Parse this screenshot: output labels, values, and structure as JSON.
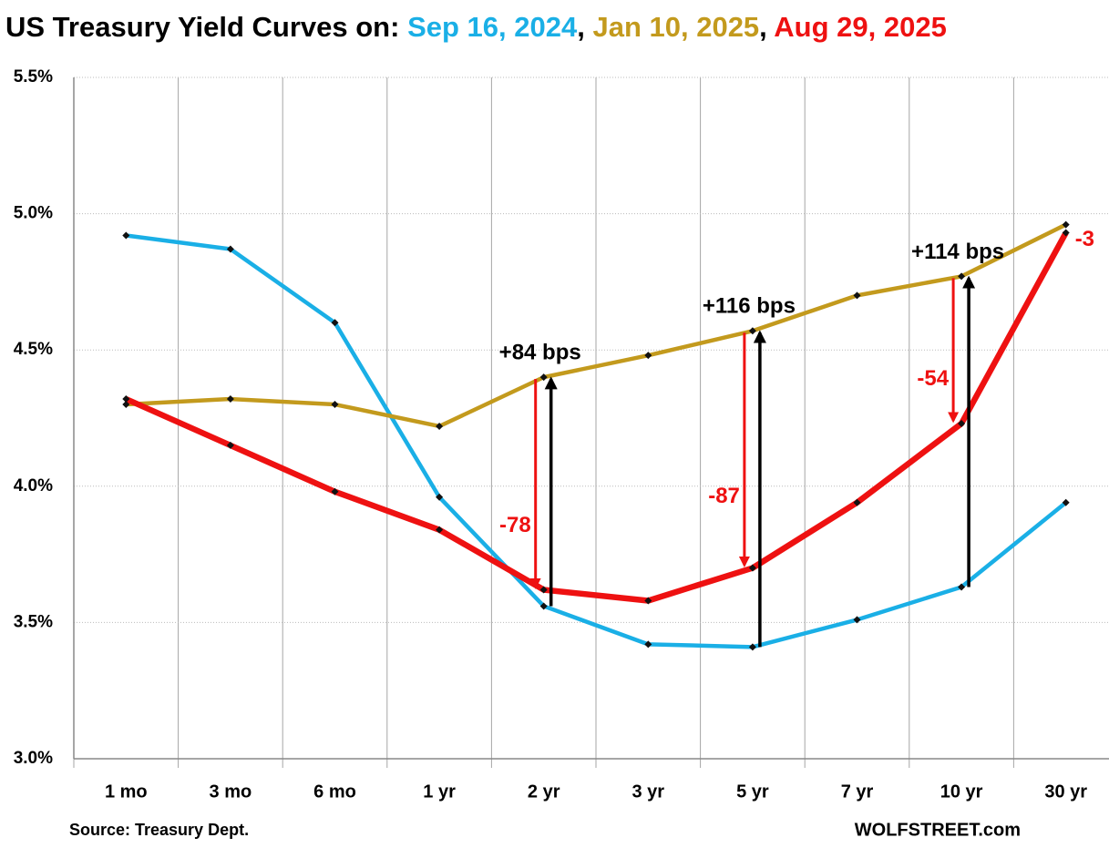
{
  "chart_data": {
    "type": "line",
    "title": "US Treasury Yield Curves on:",
    "title_separator": ",",
    "categories": [
      "1 mo",
      "3 mo",
      "6 mo",
      "1 yr",
      "2 yr",
      "3 yr",
      "5 yr",
      "7 yr",
      "10 yr",
      "30 yr"
    ],
    "series": [
      {
        "name": "Sep 16, 2024",
        "color": "#1aafe6",
        "values": [
          4.92,
          4.87,
          4.6,
          3.96,
          3.56,
          3.42,
          3.41,
          3.51,
          3.63,
          3.94
        ]
      },
      {
        "name": "Jan 10, 2025",
        "color": "#c39a1d",
        "values": [
          4.3,
          4.32,
          4.3,
          4.22,
          4.4,
          4.48,
          4.57,
          4.7,
          4.77,
          4.96
        ]
      },
      {
        "name": "Aug 29, 2025",
        "color": "#ee1111",
        "values": [
          4.32,
          4.15,
          3.98,
          3.84,
          3.62,
          3.58,
          3.7,
          3.94,
          4.23,
          4.93
        ]
      }
    ],
    "ylim": [
      3.0,
      5.5
    ],
    "yticks": [
      {
        "value": 3.0,
        "label": "3.0%"
      },
      {
        "value": 3.5,
        "label": "3.5%"
      },
      {
        "value": 4.0,
        "label": "4.0%"
      },
      {
        "value": 4.5,
        "label": "4.5%"
      },
      {
        "value": 5.0,
        "label": "5.0%"
      },
      {
        "value": 5.5,
        "label": "5.5%"
      }
    ],
    "grid": true,
    "rise_labels": [
      {
        "text": "+84 bps",
        "category": "2 yr"
      },
      {
        "text": "+116 bps",
        "category": "5 yr"
      },
      {
        "text": "+114 bps",
        "category": "10 yr"
      }
    ],
    "fall_labels": [
      {
        "text": "-78",
        "category": "2 yr",
        "arrow": true
      },
      {
        "text": "-87",
        "category": "5 yr",
        "arrow": true
      },
      {
        "text": "-54",
        "category": "10 yr",
        "arrow": true
      },
      {
        "text": "-3",
        "category": "30 yr",
        "arrow": false
      }
    ],
    "source": "Source: Treasury Dept.",
    "credit": "WOLFSTREET.com"
  }
}
